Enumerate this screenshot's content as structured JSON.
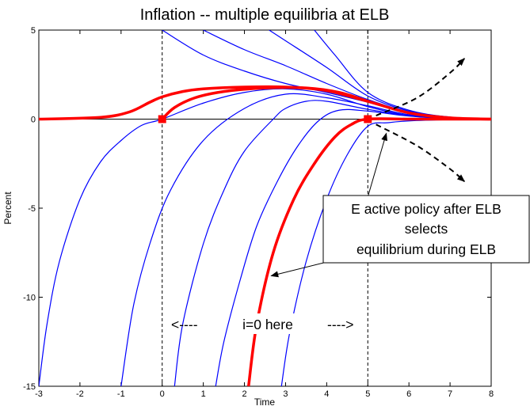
{
  "chart_data": {
    "type": "line",
    "title": "Inflation -- multiple equilibria at ELB",
    "xlabel": "Time",
    "ylabel": "Percent",
    "xlim": [
      -3,
      8
    ],
    "ylim": [
      -15,
      5
    ],
    "xticks": [
      -3,
      -2,
      -1,
      0,
      1,
      2,
      3,
      4,
      5,
      6,
      7,
      8
    ],
    "yticks": [
      5,
      0,
      -5,
      -10,
      -15
    ],
    "grid": false,
    "colors": {
      "blue": "#0000ff",
      "red": "#ff0000",
      "black": "#000000"
    },
    "blue_paths": [
      [
        [
          -3,
          -15
        ],
        [
          -2.8,
          -11.5
        ],
        [
          -2.5,
          -8
        ],
        [
          -2.0,
          -4.5
        ],
        [
          -1.5,
          -2.4
        ],
        [
          -1.0,
          -1.2
        ],
        [
          -0.5,
          -0.35
        ],
        [
          0,
          0
        ],
        [
          1,
          0.9
        ],
        [
          2,
          1.5
        ],
        [
          3,
          1.7
        ],
        [
          4,
          1.4
        ],
        [
          5,
          0.7
        ],
        [
          6,
          0.2
        ],
        [
          7,
          0.03
        ],
        [
          8,
          0
        ]
      ],
      [
        [
          -1.0,
          -15
        ],
        [
          -0.7,
          -10.5
        ],
        [
          -0.3,
          -7
        ],
        [
          0.2,
          -4
        ],
        [
          1,
          -1.2
        ],
        [
          2,
          0.6
        ],
        [
          3,
          1.4
        ],
        [
          4,
          1.2
        ],
        [
          5,
          0.75
        ],
        [
          6,
          0.25
        ],
        [
          7,
          0.05
        ],
        [
          8,
          0
        ]
      ],
      [
        [
          0.3,
          -15
        ],
        [
          0.5,
          -11.5
        ],
        [
          1.0,
          -7
        ],
        [
          1.5,
          -4
        ],
        [
          2,
          -1.8
        ],
        [
          2.7,
          0
        ],
        [
          3,
          0.6
        ],
        [
          3.5,
          1.0
        ],
        [
          4,
          1.0
        ],
        [
          5,
          0.55
        ],
        [
          6,
          0.2
        ],
        [
          7,
          0.05
        ],
        [
          8,
          0
        ]
      ],
      [
        [
          1.3,
          -15
        ],
        [
          1.5,
          -12.5
        ],
        [
          1.9,
          -9
        ],
        [
          2.3,
          -6
        ],
        [
          2.8,
          -3.5
        ],
        [
          3.3,
          -1.5
        ],
        [
          3.8,
          -0.1
        ],
        [
          4.3,
          0.5
        ],
        [
          5,
          0.45
        ],
        [
          6,
          0.17
        ],
        [
          7,
          0.04
        ],
        [
          8,
          0
        ]
      ],
      [
        [
          2.9,
          -15
        ],
        [
          3.1,
          -12
        ],
        [
          3.5,
          -8
        ],
        [
          4.0,
          -4.5
        ],
        [
          4.5,
          -2.0
        ],
        [
          5,
          -0.4
        ],
        [
          5.5,
          -0.2
        ],
        [
          6,
          -0.1
        ],
        [
          7,
          -0.03
        ],
        [
          8,
          0
        ]
      ],
      [
        [
          0,
          5
        ],
        [
          1,
          3.6
        ],
        [
          2,
          2.7
        ],
        [
          3,
          2.0
        ],
        [
          4,
          1.5
        ],
        [
          5,
          0.95
        ],
        [
          6,
          0.35
        ],
        [
          7,
          0.07
        ],
        [
          8,
          0
        ]
      ],
      [
        [
          1,
          5
        ],
        [
          2,
          3.9
        ],
        [
          3,
          3.0
        ],
        [
          4,
          2.0
        ],
        [
          5,
          1.1
        ],
        [
          6,
          0.4
        ],
        [
          7,
          0.08
        ],
        [
          8,
          0
        ]
      ],
      [
        [
          2.6,
          5
        ],
        [
          3,
          4.4
        ],
        [
          4,
          2.9
        ],
        [
          5,
          1.3
        ],
        [
          6,
          0.45
        ],
        [
          7,
          0.1
        ],
        [
          8,
          0
        ]
      ],
      [
        [
          3.7,
          5
        ],
        [
          4.2,
          3.6
        ],
        [
          5,
          1.5
        ],
        [
          6,
          0.5
        ],
        [
          7,
          0.12
        ],
        [
          8,
          0
        ]
      ]
    ],
    "red_paths": [
      [
        [
          -3,
          0
        ],
        [
          -1.5,
          0.1
        ],
        [
          -0.8,
          0.4
        ],
        [
          -0.3,
          0.95
        ],
        [
          0,
          1.25
        ],
        [
          0.5,
          1.55
        ],
        [
          1,
          1.7
        ],
        [
          2,
          1.8
        ],
        [
          3,
          1.8
        ],
        [
          4,
          1.6
        ],
        [
          5,
          1.0
        ],
        [
          6,
          0.35
        ],
        [
          7,
          0.07
        ],
        [
          8,
          0
        ]
      ],
      [
        [
          0,
          0
        ],
        [
          0.3,
          0.65
        ],
        [
          0.8,
          1.2
        ],
        [
          1.5,
          1.55
        ],
        [
          2.5,
          1.75
        ],
        [
          3.5,
          1.75
        ],
        [
          4.3,
          1.5
        ],
        [
          5,
          1.0
        ]
      ],
      [
        [
          2.1,
          -15
        ],
        [
          2.3,
          -11.5
        ],
        [
          2.7,
          -7.5
        ],
        [
          3.2,
          -4.5
        ],
        [
          3.7,
          -2.5
        ],
        [
          4.2,
          -1.0
        ],
        [
          4.6,
          -0.3
        ],
        [
          5,
          0
        ],
        [
          6,
          0
        ],
        [
          7,
          0
        ],
        [
          8,
          0
        ]
      ]
    ],
    "red_markers": [
      [
        0,
        0
      ],
      [
        5,
        0
      ]
    ],
    "zero_line": [
      [
        -3,
        0
      ],
      [
        8,
        0
      ]
    ],
    "vertical_dashed_lines": [
      0,
      5
    ],
    "dashed_arrows": [
      [
        [
          5.2,
          0.2
        ],
        [
          6.2,
          1.2
        ],
        [
          7.0,
          2.6
        ],
        [
          7.35,
          3.4
        ]
      ],
      [
        [
          5.2,
          -0.3
        ],
        [
          6.2,
          -1.5
        ],
        [
          7.0,
          -2.8
        ],
        [
          7.35,
          -3.5
        ]
      ]
    ],
    "annotations": {
      "policy_box": [
        "E active policy  after ELB",
        "selects",
        "equilibrium during ELB"
      ],
      "elb_label": "i=0 here",
      "elb_left_arrow": "<----",
      "elb_right_arrow": "---->"
    },
    "pointer_arrows": [
      {
        "from": [
          4.92,
          -5.0
        ],
        "to": [
          5.45,
          -0.8
        ]
      },
      {
        "from": [
          5.0,
          -7.45
        ],
        "to": [
          2.65,
          -8.8
        ]
      }
    ]
  }
}
